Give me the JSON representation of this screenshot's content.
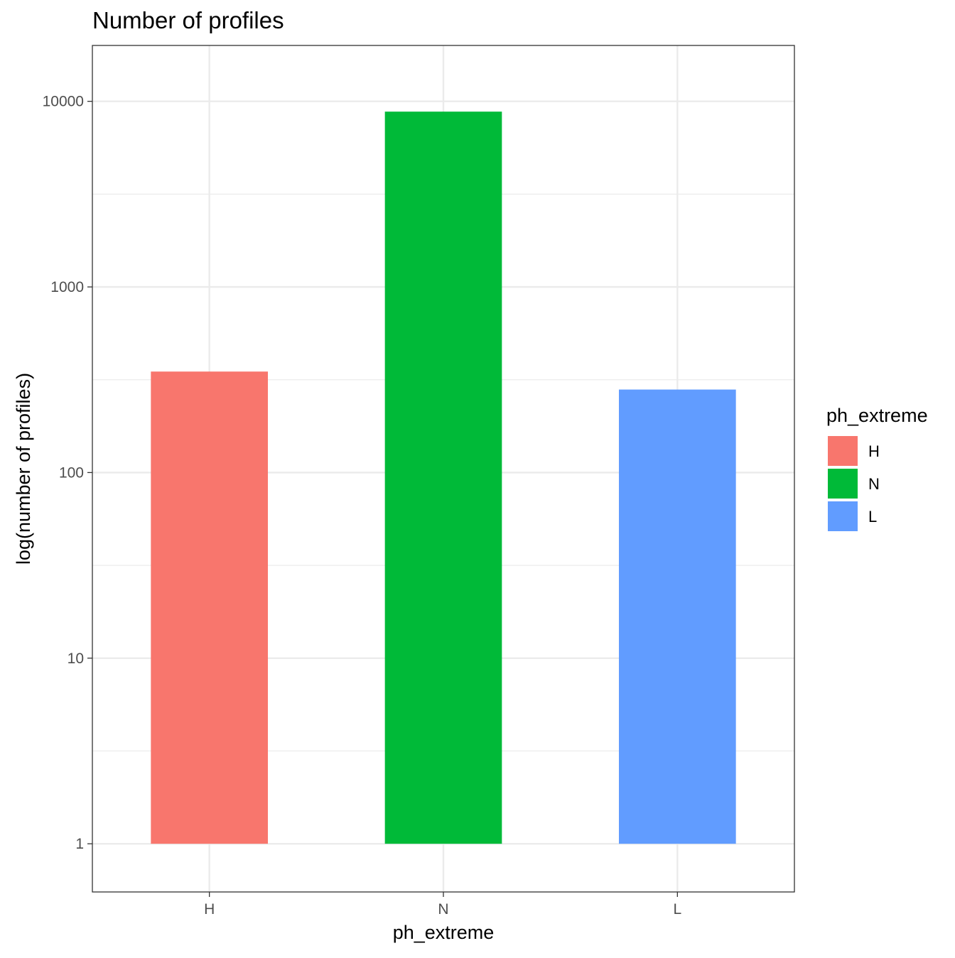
{
  "chart_data": {
    "type": "bar",
    "title": "Number of profiles",
    "xlabel": "ph_extreme",
    "ylabel": "log(number of profiles)",
    "y_scale": "log10",
    "ylim": [
      0.55,
      20000
    ],
    "y_ticks": [
      1,
      10,
      100,
      1000,
      10000
    ],
    "y_tick_labels": [
      "1",
      "10",
      "100",
      "1000",
      "10000"
    ],
    "grid": true,
    "categories": [
      "H",
      "N",
      "L"
    ],
    "values": [
      350,
      8800,
      280
    ],
    "bar_colors": [
      "#F8766D",
      "#00BA38",
      "#619CFF"
    ],
    "legend": {
      "title": "ph_extreme",
      "placement": "right",
      "items": [
        {
          "label": "H",
          "color": "#F8766D"
        },
        {
          "label": "N",
          "color": "#00BA38"
        },
        {
          "label": "L",
          "color": "#619CFF"
        }
      ]
    }
  }
}
